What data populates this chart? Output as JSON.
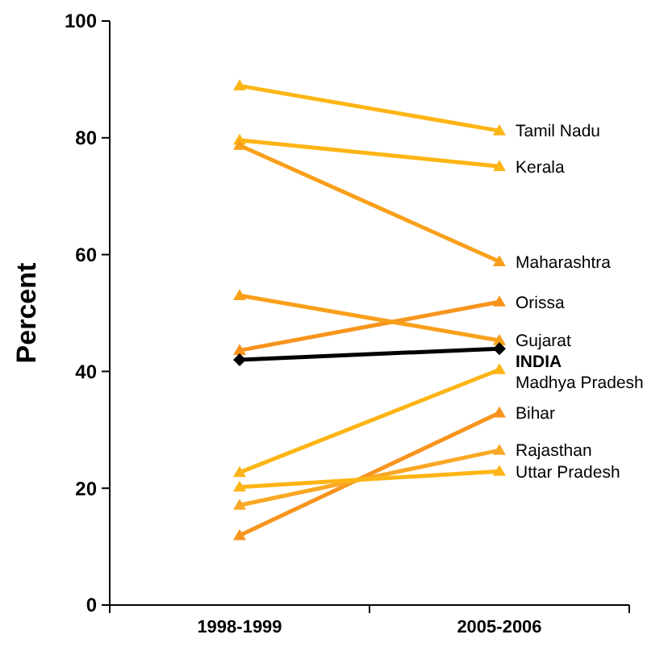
{
  "chart_data": {
    "type": "line",
    "ylabel": "Percent",
    "categories": [
      "1998-1999",
      "2005-2006"
    ],
    "ylim": [
      0,
      100
    ],
    "yticks": [
      0,
      20,
      40,
      60,
      80,
      100
    ],
    "marker": "triangle",
    "grid": false,
    "series": [
      {
        "name": "Tamil Nadu",
        "color": "#fdb515",
        "values": [
          88.9,
          81.2
        ]
      },
      {
        "name": "Kerala",
        "color": "#fdb515",
        "values": [
          79.6,
          75.1
        ]
      },
      {
        "name": "Maharashtra",
        "color": "#f9a01b",
        "values": [
          78.7,
          58.8
        ]
      },
      {
        "name": "Orissa",
        "color": "#f7941d",
        "values": [
          43.6,
          51.9
        ]
      },
      {
        "name": "Gujarat",
        "color": "#f9a01b",
        "values": [
          53.0,
          45.3
        ]
      },
      {
        "name": "INDIA",
        "color": "#000000",
        "values": [
          42.0,
          43.9
        ],
        "marker": "diamond"
      },
      {
        "name": "Madhya Pradesh",
        "color": "#fdb515",
        "values": [
          22.7,
          40.3
        ]
      },
      {
        "name": "Bihar",
        "color": "#f7941d",
        "values": [
          11.9,
          32.9
        ]
      },
      {
        "name": "Rajasthan",
        "color": "#f9a825",
        "values": [
          17.1,
          26.5
        ]
      },
      {
        "name": "Uttar Pradesh",
        "color": "#fdb515",
        "values": [
          20.2,
          22.9
        ]
      }
    ]
  }
}
